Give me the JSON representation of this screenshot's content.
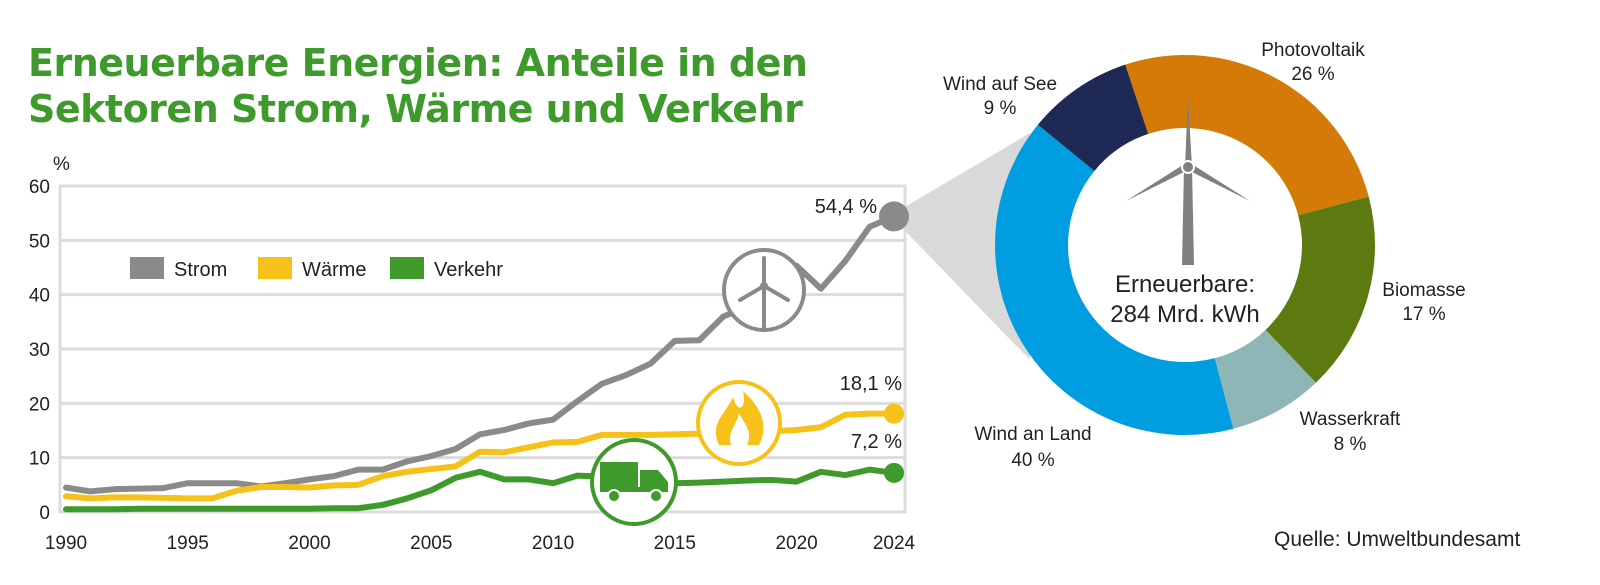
{
  "title_line1": "Erneuerbare Energien: Anteile in den",
  "title_line2": "Sektoren Strom, Wärme und Verkehr",
  "source": "Quelle: Umweltbundesamt",
  "chart_data": [
    {
      "type": "line",
      "title": "",
      "ylabel": "%",
      "xlabel": "",
      "xlim": [
        1990,
        2024
      ],
      "ylim": [
        0,
        60
      ],
      "xticks": [
        "1990",
        "1995",
        "2000",
        "2005",
        "2010",
        "2015",
        "2020",
        "2024"
      ],
      "yticks": [
        "0",
        "10",
        "20",
        "30",
        "40",
        "50",
        "60"
      ],
      "grid": true,
      "legend_position": "top-left",
      "x": [
        1990,
        1991,
        1992,
        1993,
        1994,
        1995,
        1996,
        1997,
        1998,
        1999,
        2000,
        2001,
        2002,
        2003,
        2004,
        2005,
        2006,
        2007,
        2008,
        2009,
        2010,
        2011,
        2012,
        2013,
        2014,
        2015,
        2016,
        2017,
        2018,
        2019,
        2020,
        2021,
        2022,
        2023,
        2024
      ],
      "series": [
        {
          "name": "Strom",
          "color": "#8a8a8a",
          "icon": "wind-turbine-icon",
          "end_label": "54,4 %",
          "values": [
            4.5,
            3.8,
            4.2,
            4.3,
            4.4,
            5.3,
            5.3,
            5.3,
            4.7,
            5.3,
            6.0,
            6.6,
            7.8,
            7.8,
            9.3,
            10.3,
            11.6,
            14.3,
            15.1,
            16.3,
            17.0,
            20.4,
            23.6,
            25.2,
            27.3,
            31.5,
            31.6,
            36.0,
            37.8,
            42.0,
            45.3,
            41.1,
            46.2,
            52.5,
            54.4
          ]
        },
        {
          "name": "Wärme",
          "color": "#f6c21a",
          "icon": "flame-icon",
          "end_label": "18,1 %",
          "values": [
            2.9,
            2.5,
            2.7,
            2.7,
            2.6,
            2.5,
            2.5,
            3.9,
            4.6,
            4.6,
            4.5,
            4.9,
            5.0,
            6.6,
            7.4,
            7.9,
            8.4,
            11.1,
            11.0,
            11.9,
            12.8,
            12.9,
            14.2,
            14.2,
            14.2,
            14.3,
            14.4,
            14.4,
            14.4,
            14.9,
            15.1,
            15.6,
            17.9,
            18.1,
            18.1
          ]
        },
        {
          "name": "Verkehr",
          "color": "#3e9a2a",
          "icon": "truck-icon",
          "end_label": "7,2 %",
          "values": [
            0.5,
            0.5,
            0.5,
            0.6,
            0.6,
            0.6,
            0.6,
            0.6,
            0.6,
            0.6,
            0.6,
            0.7,
            0.7,
            1.3,
            2.5,
            4.0,
            6.3,
            7.4,
            6.0,
            6.0,
            5.3,
            6.7,
            6.5,
            6.3,
            5.8,
            5.3,
            5.4,
            5.6,
            5.8,
            5.9,
            5.6,
            7.4,
            6.8,
            7.8,
            7.2
          ]
        }
      ]
    },
    {
      "type": "pie",
      "title": "",
      "center_label_line1": "Erneuerbare:",
      "center_label_line2": "284 Mrd. kWh",
      "center_icon": "wind-turbine-icon",
      "slices": [
        {
          "name": "Photovoltaik",
          "value": 26,
          "label": "26 %",
          "color": "#d47a08"
        },
        {
          "name": "Biomasse",
          "value": 17,
          "label": "17 %",
          "color": "#5c7a0f"
        },
        {
          "name": "Wasserkraft",
          "value": 8,
          "label": "8 %",
          "color": "#8fb6b6"
        },
        {
          "name": "Wind an Land",
          "value": 40,
          "label": "40 %",
          "color": "#009ee0"
        },
        {
          "name": "Wind auf See",
          "value": 9,
          "label": "9 %",
          "color": "#1e2a55"
        }
      ]
    }
  ]
}
